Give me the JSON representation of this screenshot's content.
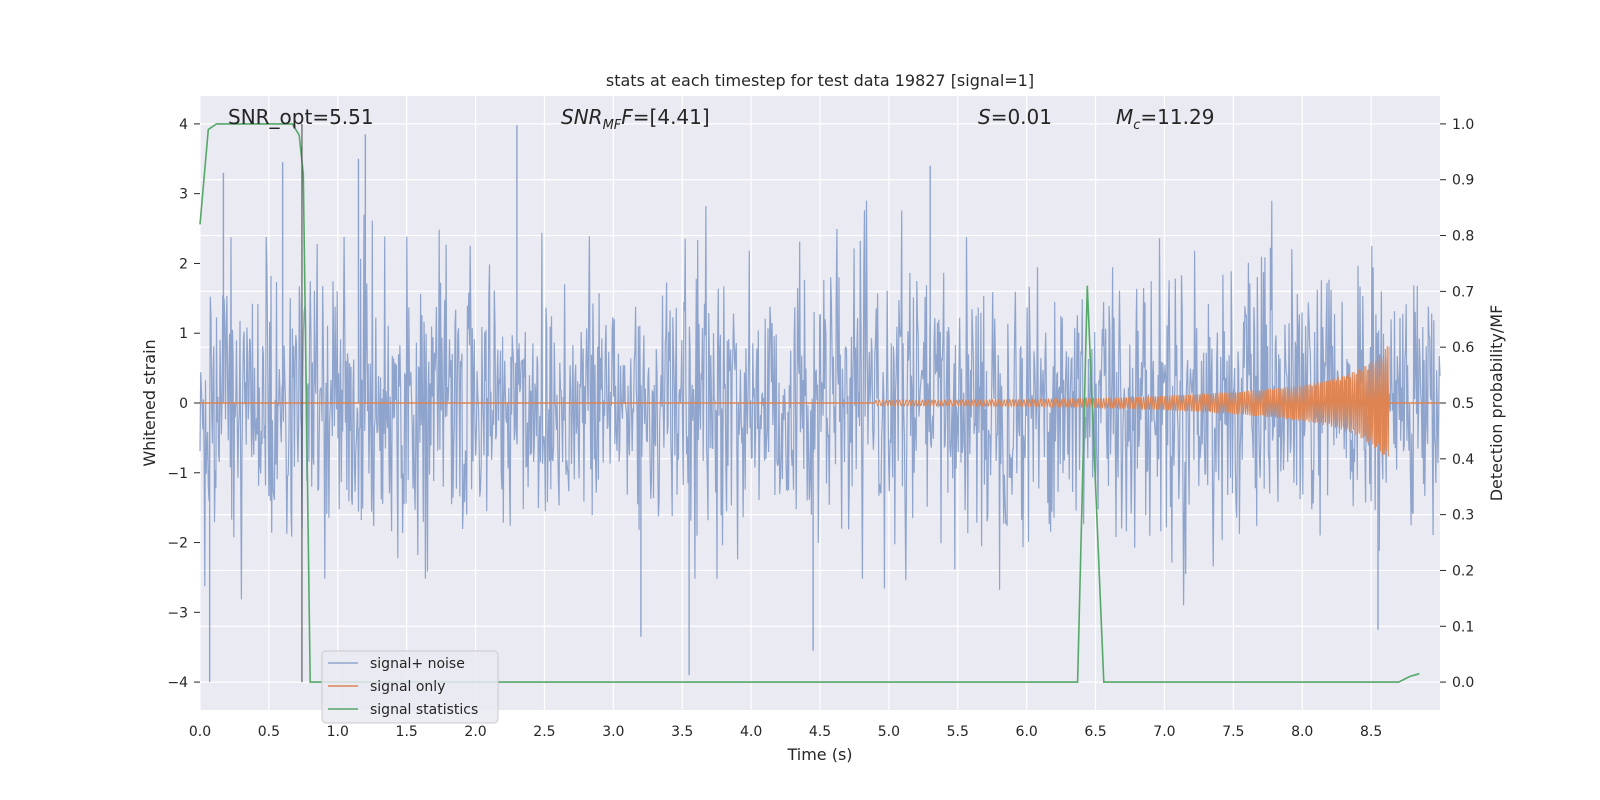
{
  "chart_data": {
    "type": "line",
    "title": "stats at each timestep for test data 19827 [signal=1]",
    "xlabel": "Time (s)",
    "ylabel": "Whitened strain",
    "y2label": "Detection probability/MF",
    "xlim": [
      0,
      9.0
    ],
    "ylim": [
      -4.4,
      4.4
    ],
    "y2lim": [
      -0.05,
      1.05
    ],
    "x_ticks": [
      0.0,
      0.5,
      1.0,
      1.5,
      2.0,
      2.5,
      3.0,
      3.5,
      4.0,
      4.5,
      5.0,
      5.5,
      6.0,
      6.5,
      7.0,
      7.5,
      8.0,
      8.5
    ],
    "x_tick_labels": [
      "0.0",
      "0.5",
      "1.0",
      "1.5",
      "2.0",
      "2.5",
      "3.0",
      "3.5",
      "4.0",
      "4.5",
      "5.0",
      "5.5",
      "6.0",
      "6.5",
      "7.0",
      "7.5",
      "8.0",
      "8.5"
    ],
    "y_ticks": [
      -4,
      -3,
      -2,
      -1,
      0,
      1,
      2,
      3,
      4
    ],
    "y_tick_labels": [
      "−4",
      "−3",
      "−2",
      "−1",
      "0",
      "1",
      "2",
      "3",
      "4"
    ],
    "y2_ticks": [
      0.0,
      0.1,
      0.2,
      0.3,
      0.4,
      0.5,
      0.6,
      0.7,
      0.8,
      0.9,
      1.0
    ],
    "y2_tick_labels": [
      "0.0",
      "0.1",
      "0.2",
      "0.3",
      "0.4",
      "0.5",
      "0.6",
      "0.7",
      "0.8",
      "0.9",
      "1.0"
    ],
    "grid": true,
    "legend_position": "lower-left",
    "annotations": {
      "snr_opt": "SNR_opt=5.51",
      "snr_mf": {
        "main": "SNR",
        "sub": "MF",
        "rest": "=[4.41]"
      },
      "s_stat": {
        "main": "S",
        "rest": "=0.01"
      },
      "mc": {
        "main": "M",
        "sub": "c",
        "rest": "=11.29"
      }
    },
    "vertical_marker_x": 0.74,
    "series": [
      {
        "name": "signal+ noise",
        "color": "#8fa4cc",
        "axis": "left",
        "kind": "dense noise, amplitude ~1.5-2.5, peaks to ~4",
        "peaks": [
          {
            "x": 0.07,
            "y": -4.0
          },
          {
            "x": 0.17,
            "y": 3.3
          },
          {
            "x": 0.6,
            "y": 3.45
          },
          {
            "x": 1.15,
            "y": 3.5
          },
          {
            "x": 1.2,
            "y": 3.85
          },
          {
            "x": 2.3,
            "y": 3.98
          },
          {
            "x": 3.2,
            "y": -3.35
          },
          {
            "x": 3.55,
            "y": -3.9
          },
          {
            "x": 4.45,
            "y": -3.55
          },
          {
            "x": 5.3,
            "y": 3.4
          },
          {
            "x": 8.55,
            "y": -3.25
          }
        ]
      },
      {
        "name": "signal only",
        "color": "#dd8452",
        "axis": "left",
        "kind": "chirp, envelope grows from 0 near x=5.0 to about ±0.85 at x=8.63, then stops"
      },
      {
        "name": "signal statistics",
        "color": "#55a868",
        "axis": "right",
        "x": [
          0.0,
          0.06,
          0.12,
          0.2,
          0.3,
          0.4,
          0.5,
          0.6,
          0.67,
          0.72,
          0.75,
          0.8,
          1.0,
          2.0,
          3.0,
          4.0,
          5.0,
          6.0,
          6.3,
          6.37,
          6.44,
          6.5,
          6.56,
          6.6,
          7.0,
          8.0,
          8.6,
          8.7,
          8.78,
          8.85
        ],
        "y": [
          0.82,
          0.99,
          1.0,
          1.0,
          1.0,
          1.0,
          1.0,
          1.0,
          1.0,
          0.98,
          0.91,
          0.0,
          0.0,
          0.0,
          0.0,
          0.0,
          0.0,
          0.0,
          0.0,
          0.0,
          0.71,
          0.35,
          0.0,
          0.0,
          0.0,
          0.0,
          0.0,
          0.0,
          0.01,
          0.015
        ]
      }
    ]
  }
}
